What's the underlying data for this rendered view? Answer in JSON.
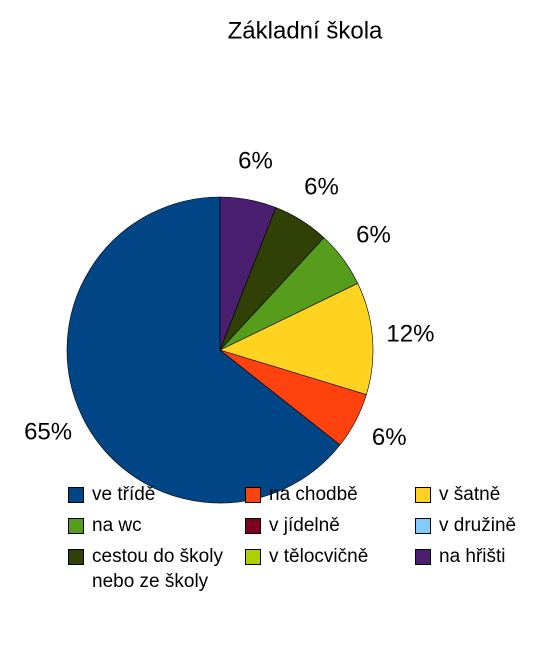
{
  "chart_data": {
    "type": "pie",
    "title": "Základní škola",
    "categories": [
      "ve třídě",
      "na chodbě",
      "v šatně",
      "na wc",
      "v jídelně",
      "v družině",
      "cestou do školy nebo ze školy",
      "v tělocvičně",
      "na hřišti"
    ],
    "values": [
      65,
      6,
      12,
      6,
      0,
      0,
      6,
      0,
      6
    ],
    "value_labels": [
      "65%",
      "6%",
      "12%",
      "6%",
      null,
      null,
      "6%",
      null,
      "6%"
    ],
    "colors": [
      "#004586",
      "#ff420e",
      "#ffd320",
      "#579d1c",
      "#7e0021",
      "#83caff",
      "#314004",
      "#aecf00",
      "#4b1f6f"
    ],
    "legend": "bottom"
  }
}
